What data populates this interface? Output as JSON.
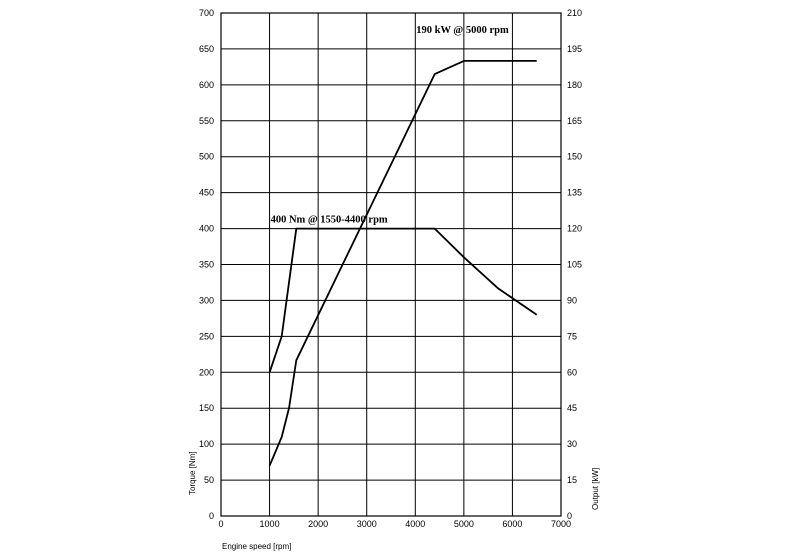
{
  "chart_data": {
    "type": "line",
    "xlabel": "Engine speed [rpm]",
    "ylabel_left": "Torque [Nm]",
    "ylabel_right": "Output [kW]",
    "xlim": [
      0,
      7000
    ],
    "ylim_left": [
      0,
      700
    ],
    "ylim_right": [
      0,
      210
    ],
    "x_ticks": [
      "0",
      "1000",
      "2000",
      "3000",
      "4000",
      "5000",
      "6000",
      "7000"
    ],
    "y_ticks_left": [
      "0",
      "50",
      "100",
      "150",
      "200",
      "250",
      "300",
      "350",
      "400",
      "450",
      "500",
      "550",
      "600",
      "650",
      "700"
    ],
    "y_ticks_right": [
      "0",
      "15",
      "30",
      "45",
      "60",
      "75",
      "90",
      "105",
      "120",
      "135",
      "150",
      "165",
      "180",
      "195",
      "210"
    ],
    "grid": true,
    "series": [
      {
        "axis": "left",
        "unit": "Nm",
        "x": [
          1000,
          1250,
          1550,
          4400,
          5000,
          5700,
          6500
        ],
        "y": [
          200,
          250,
          400,
          400,
          360,
          317,
          280
        ]
      },
      {
        "axis": "right",
        "unit": "kW",
        "x": [
          1000,
          1250,
          1400,
          1550,
          4400,
          5000,
          6500
        ],
        "y": [
          21,
          33,
          45,
          65,
          184.5,
          190,
          190
        ]
      }
    ],
    "annotations": [
      {
        "text": "400 Nm @ 1550-4400 rpm",
        "x": 1000,
        "y": 403,
        "axis": "left"
      },
      {
        "text": "190 kW @ 5000 rpm",
        "x": 4000,
        "y": 200,
        "axis": "right"
      }
    ]
  }
}
